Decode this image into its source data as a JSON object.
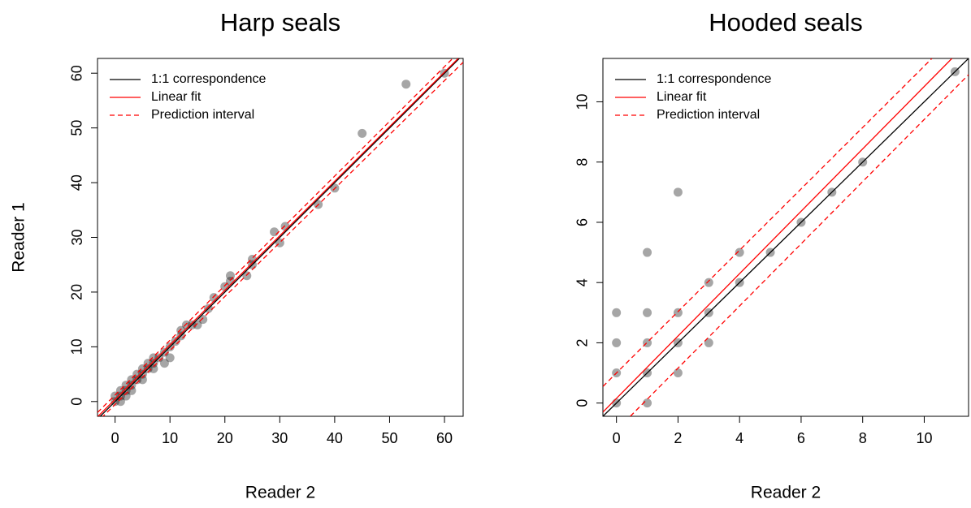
{
  "chart_data": [
    {
      "type": "scatter",
      "title": "Harp seals",
      "x_label": "Reader 2",
      "y_label": "Reader 1",
      "xlim": [
        -3.2,
        63.4
      ],
      "ylim": [
        -2.7,
        62.7
      ],
      "xticks": [
        0,
        10,
        20,
        30,
        40,
        50,
        60
      ],
      "yticks": [
        0,
        10,
        20,
        30,
        40,
        50,
        60
      ],
      "legend": "topleft",
      "point_color": "#000000",
      "point_opacity": 0.35,
      "points": {
        "x": [
          0,
          0,
          1,
          1,
          1,
          2,
          2,
          2,
          3,
          3,
          3,
          4,
          4,
          5,
          5,
          5,
          6,
          6,
          7,
          7,
          7,
          8,
          9,
          9,
          10,
          10,
          11,
          12,
          12,
          13,
          14,
          15,
          16,
          17,
          18,
          20,
          21,
          21,
          24,
          25,
          25,
          29,
          30,
          31,
          37,
          40,
          45,
          53,
          60
        ],
        "y": [
          0,
          1,
          0,
          1,
          2,
          1,
          2,
          3,
          2,
          3,
          4,
          4,
          5,
          4,
          5,
          6,
          6,
          7,
          6,
          7,
          8,
          8,
          7,
          9,
          8,
          10,
          11,
          12,
          13,
          14,
          14,
          14,
          15,
          17,
          19,
          21,
          22,
          23,
          23,
          25,
          26,
          31,
          29,
          32,
          36,
          39,
          49,
          58,
          60
        ]
      },
      "lines": [
        {
          "name": "1:1 correspondence",
          "color": "#000000",
          "dash": false,
          "segments": [
            {
              "x": [
                -2.7,
                62.7
              ],
              "values": [
                -2.7,
                62.7
              ]
            }
          ]
        },
        {
          "name": "Linear fit",
          "color": "#ff0000",
          "dash": false,
          "segments": [
            {
              "x": [
                -3.2,
                62.5
              ],
              "values": [
                -2.8,
                62.7
              ]
            }
          ]
        },
        {
          "name": "Prediction interval",
          "color": "#ff0000",
          "dash": true,
          "segments": [
            {
              "x": [
                -3.2,
                61.5
              ],
              "values": [
                -2.0,
                62.7
              ]
            },
            {
              "x": [
                -2.5,
                63.4
              ],
              "values": [
                -3.0,
                62.0
              ]
            }
          ]
        }
      ]
    },
    {
      "type": "scatter",
      "title": "Hooded seals",
      "x_label": "Reader 2",
      "xlim": [
        -0.44,
        11.44
      ],
      "ylim": [
        -0.44,
        11.44
      ],
      "xticks": [
        0,
        2,
        4,
        6,
        8,
        10
      ],
      "yticks": [
        0,
        2,
        4,
        6,
        8,
        10
      ],
      "legend": "topleft",
      "point_color": "#000000",
      "point_opacity": 0.35,
      "points": {
        "x": [
          0,
          0,
          0,
          0,
          1,
          1,
          1,
          1,
          1,
          2,
          2,
          2,
          2,
          3,
          3,
          3,
          4,
          4,
          5,
          6,
          7,
          8,
          11
        ],
        "y": [
          0,
          1,
          2,
          3,
          0,
          1,
          2,
          3,
          5,
          1,
          2,
          3,
          7,
          2,
          3,
          4,
          4,
          5,
          5,
          6,
          7,
          8,
          11
        ]
      },
      "lines": [
        {
          "name": "1:1 correspondence",
          "color": "#000000",
          "dash": false,
          "segments": [
            {
              "x": [
                -0.44,
                11.44
              ],
              "values": [
                -0.44,
                11.44
              ]
            }
          ]
        },
        {
          "name": "Linear fit",
          "color": "#ff0000",
          "dash": false,
          "segments": [
            {
              "x": [
                -0.44,
                10.9
              ],
              "values": [
                -0.3,
                11.44
              ]
            }
          ]
        },
        {
          "name": "Prediction interval",
          "color": "#ff0000",
          "dash": true,
          "segments": [
            {
              "x": [
                -0.44,
                10.25
              ],
              "values": [
                0.55,
                11.44
              ]
            },
            {
              "x": [
                0.45,
                11.44
              ],
              "values": [
                -0.44,
                10.9
              ]
            }
          ]
        }
      ]
    }
  ]
}
